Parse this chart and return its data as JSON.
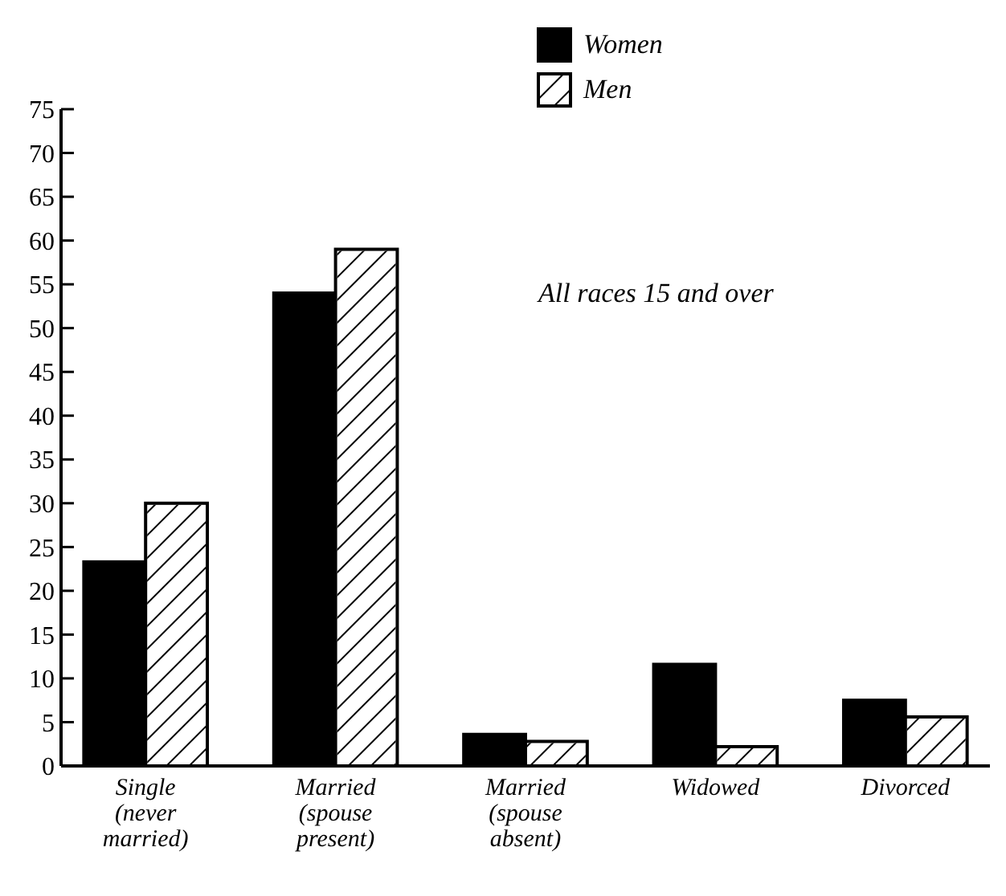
{
  "chart_data": {
    "type": "bar",
    "categories": [
      "Single\n(never\nmarried)",
      "Married\n(spouse\npresent)",
      "Married\n(spouse\nabsent)",
      "Widowed",
      "Divorced"
    ],
    "series": [
      {
        "name": "Women",
        "color": "#000000",
        "values": [
          23.3,
          54,
          3.6,
          11.6,
          7.5
        ]
      },
      {
        "name": "Men",
        "color": "#ffffff",
        "values": [
          30,
          59,
          2.8,
          2.2,
          5.6
        ]
      }
    ],
    "ylim": [
      0,
      75
    ],
    "yticks": [
      0,
      5,
      10,
      15,
      20,
      25,
      30,
      35,
      40,
      45,
      50,
      55,
      60,
      65,
      70,
      75
    ],
    "annotations": [
      "All races 15 and over"
    ],
    "legend": "top right",
    "grid": false
  }
}
